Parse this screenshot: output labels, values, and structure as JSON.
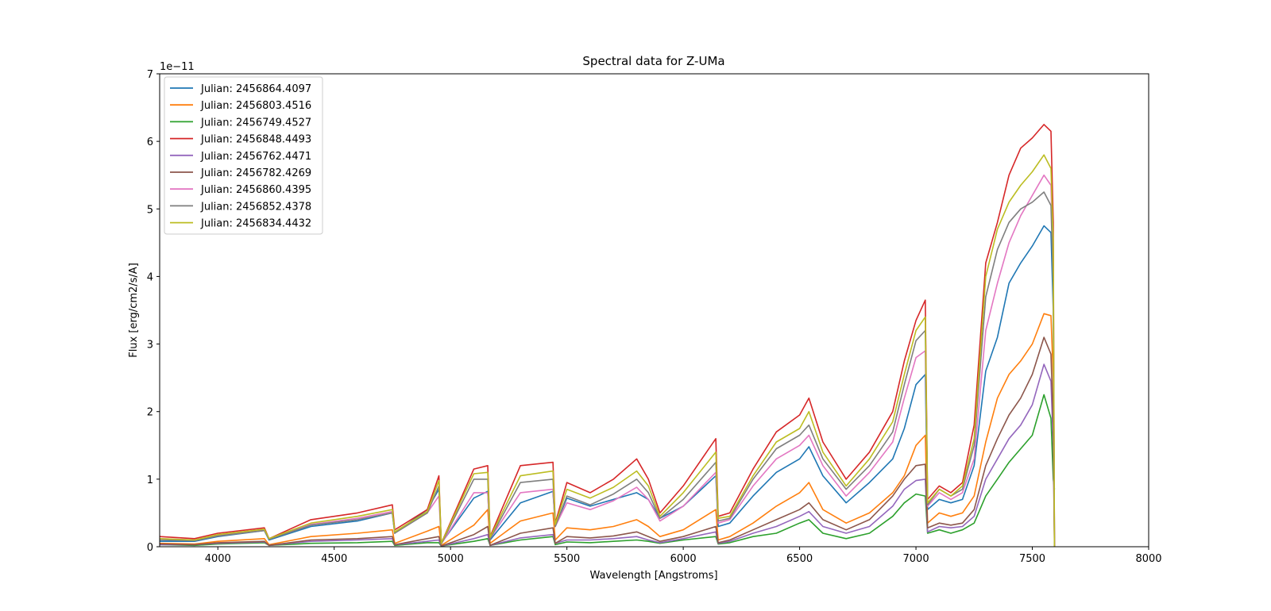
{
  "chart_data": {
    "type": "line",
    "title": "Spectral data for Z-UMa",
    "xlabel": "Wavelength [Angstroms]",
    "ylabel": "Flux [erg/cm2/s/A]",
    "offset_text": "1e−11",
    "xlim": [
      3750,
      8000
    ],
    "ylim": [
      0,
      7
    ],
    "x_ticks": [
      4000,
      4500,
      5000,
      5500,
      6000,
      6500,
      7000,
      7500,
      8000
    ],
    "x_tick_labels": [
      "4000",
      "4500",
      "5000",
      "5500",
      "6000",
      "6500",
      "7000",
      "7500",
      "8000"
    ],
    "y_ticks": [
      0,
      1,
      2,
      3,
      4,
      5,
      6,
      7
    ],
    "y_tick_labels": [
      "0",
      "1",
      "2",
      "3",
      "4",
      "5",
      "6",
      "7"
    ],
    "grid": false,
    "legend_position": "upper-left",
    "x": [
      3750,
      3900,
      4000,
      4200,
      4220,
      4400,
      4600,
      4750,
      4760,
      4900,
      4950,
      4960,
      5100,
      5160,
      5170,
      5300,
      5440,
      5450,
      5500,
      5600,
      5700,
      5800,
      5850,
      5900,
      6000,
      6140,
      6150,
      6200,
      6300,
      6400,
      6500,
      6540,
      6600,
      6700,
      6800,
      6900,
      6950,
      7000,
      7040,
      7050,
      7100,
      7150,
      7200,
      7250,
      7300,
      7350,
      7400,
      7450,
      7500,
      7550,
      7580,
      7590,
      7595
    ],
    "series": [
      {
        "name": "Julian: 2456864.4097",
        "color": "#1f77b4",
        "values": [
          0.08,
          0.08,
          0.15,
          0.24,
          0.1,
          0.3,
          0.38,
          0.5,
          0.2,
          0.55,
          0.85,
          0.05,
          0.72,
          0.82,
          0.1,
          0.65,
          0.82,
          0.3,
          0.72,
          0.6,
          0.7,
          0.8,
          0.7,
          0.42,
          0.6,
          1.05,
          0.3,
          0.35,
          0.75,
          1.1,
          1.3,
          1.48,
          1.05,
          0.65,
          0.95,
          1.3,
          1.75,
          2.4,
          2.55,
          0.55,
          0.7,
          0.65,
          0.7,
          1.2,
          2.6,
          3.1,
          3.9,
          4.2,
          4.45,
          4.75,
          4.65,
          3.5,
          0
        ]
      },
      {
        "name": "Julian: 2456803.4516",
        "color": "#ff7f0e",
        "values": [
          0.05,
          0.04,
          0.08,
          0.12,
          0.03,
          0.15,
          0.2,
          0.25,
          0.05,
          0.23,
          0.3,
          0.02,
          0.32,
          0.55,
          0.05,
          0.38,
          0.5,
          0.1,
          0.28,
          0.25,
          0.3,
          0.4,
          0.3,
          0.15,
          0.25,
          0.55,
          0.1,
          0.15,
          0.35,
          0.6,
          0.8,
          0.95,
          0.55,
          0.35,
          0.5,
          0.8,
          1.05,
          1.5,
          1.65,
          0.35,
          0.5,
          0.45,
          0.5,
          0.75,
          1.55,
          2.2,
          2.55,
          2.75,
          3.0,
          3.45,
          3.42,
          2.5,
          0
        ]
      },
      {
        "name": "Julian: 2456749.4527",
        "color": "#2ca02c",
        "values": [
          0.03,
          0.02,
          0.04,
          0.06,
          0.02,
          0.05,
          0.06,
          0.08,
          0.02,
          0.06,
          0.06,
          0.01,
          0.08,
          0.12,
          0.02,
          0.1,
          0.15,
          0.03,
          0.07,
          0.06,
          0.08,
          0.1,
          0.08,
          0.05,
          0.1,
          0.15,
          0.04,
          0.06,
          0.15,
          0.2,
          0.35,
          0.4,
          0.2,
          0.12,
          0.2,
          0.45,
          0.65,
          0.78,
          0.75,
          0.2,
          0.25,
          0.2,
          0.25,
          0.35,
          0.75,
          1.0,
          1.25,
          1.45,
          1.65,
          2.25,
          1.9,
          1.0,
          0.85
        ]
      },
      {
        "name": "Julian: 2456848.4493",
        "color": "#d62728",
        "values": [
          0.15,
          0.12,
          0.2,
          0.28,
          0.12,
          0.4,
          0.5,
          0.62,
          0.25,
          0.55,
          1.05,
          0.05,
          1.15,
          1.2,
          0.15,
          1.2,
          1.25,
          0.35,
          0.95,
          0.8,
          1.0,
          1.3,
          1.0,
          0.5,
          0.9,
          1.6,
          0.45,
          0.5,
          1.15,
          1.7,
          1.95,
          2.2,
          1.55,
          1.0,
          1.4,
          2.0,
          2.75,
          3.35,
          3.65,
          0.7,
          0.9,
          0.8,
          0.95,
          1.8,
          4.2,
          4.8,
          5.5,
          5.9,
          6.05,
          6.25,
          6.15,
          4.8,
          0
        ]
      },
      {
        "name": "Julian: 2456762.4471",
        "color": "#9467bd",
        "values": [
          0.03,
          0.03,
          0.05,
          0.07,
          0.02,
          0.08,
          0.1,
          0.12,
          0.03,
          0.08,
          0.1,
          0.01,
          0.12,
          0.18,
          0.02,
          0.13,
          0.18,
          0.05,
          0.1,
          0.1,
          0.12,
          0.15,
          0.1,
          0.06,
          0.12,
          0.22,
          0.05,
          0.08,
          0.2,
          0.3,
          0.45,
          0.52,
          0.3,
          0.2,
          0.3,
          0.6,
          0.85,
          0.98,
          1.0,
          0.22,
          0.3,
          0.28,
          0.3,
          0.45,
          1.0,
          1.3,
          1.6,
          1.8,
          2.1,
          2.7,
          2.45,
          1.5,
          0
        ]
      },
      {
        "name": "Julian: 2456782.4269",
        "color": "#8c564b",
        "values": [
          0.04,
          0.03,
          0.06,
          0.08,
          0.02,
          0.1,
          0.12,
          0.15,
          0.03,
          0.12,
          0.15,
          0.01,
          0.18,
          0.3,
          0.02,
          0.2,
          0.28,
          0.05,
          0.15,
          0.13,
          0.16,
          0.22,
          0.15,
          0.08,
          0.15,
          0.3,
          0.06,
          0.1,
          0.25,
          0.4,
          0.55,
          0.65,
          0.4,
          0.25,
          0.4,
          0.75,
          1.0,
          1.2,
          1.22,
          0.28,
          0.35,
          0.32,
          0.35,
          0.55,
          1.2,
          1.6,
          1.95,
          2.2,
          2.55,
          3.1,
          2.85,
          1.8,
          0
        ]
      },
      {
        "name": "Julian: 2456860.4395",
        "color": "#e377c2",
        "values": [
          0.12,
          0.1,
          0.17,
          0.25,
          0.12,
          0.33,
          0.42,
          0.52,
          0.22,
          0.5,
          0.75,
          0.04,
          0.8,
          0.8,
          0.12,
          0.8,
          0.85,
          0.3,
          0.65,
          0.55,
          0.68,
          0.88,
          0.7,
          0.38,
          0.6,
          1.1,
          0.35,
          0.4,
          0.9,
          1.3,
          1.5,
          1.65,
          1.2,
          0.75,
          1.1,
          1.55,
          2.2,
          2.8,
          2.9,
          0.6,
          0.8,
          0.7,
          0.8,
          1.3,
          3.2,
          3.9,
          4.5,
          4.9,
          5.2,
          5.5,
          5.35,
          4.1,
          0
        ]
      },
      {
        "name": "Julian: 2456852.4378",
        "color": "#7f7f7f",
        "values": [
          0.1,
          0.09,
          0.16,
          0.24,
          0.11,
          0.32,
          0.4,
          0.5,
          0.2,
          0.5,
          0.9,
          0.04,
          1.0,
          1.0,
          0.12,
          0.95,
          1.0,
          0.3,
          0.75,
          0.62,
          0.78,
          1.0,
          0.8,
          0.42,
          0.7,
          1.25,
          0.38,
          0.42,
          1.0,
          1.45,
          1.65,
          1.8,
          1.3,
          0.85,
          1.2,
          1.7,
          2.4,
          3.05,
          3.2,
          0.62,
          0.85,
          0.75,
          0.85,
          1.5,
          3.7,
          4.4,
          4.8,
          5.0,
          5.1,
          5.25,
          5.05,
          3.9,
          0
        ]
      },
      {
        "name": "Julian: 2456834.4432",
        "color": "#bcbd22",
        "values": [
          0.12,
          0.1,
          0.18,
          0.26,
          0.12,
          0.35,
          0.45,
          0.55,
          0.22,
          0.52,
          0.98,
          0.05,
          1.08,
          1.1,
          0.14,
          1.05,
          1.12,
          0.33,
          0.85,
          0.72,
          0.88,
          1.12,
          0.9,
          0.45,
          0.8,
          1.4,
          0.42,
          0.45,
          1.05,
          1.55,
          1.75,
          2.0,
          1.4,
          0.9,
          1.3,
          1.85,
          2.55,
          3.2,
          3.4,
          0.65,
          0.85,
          0.75,
          0.9,
          1.6,
          4.0,
          4.7,
          5.1,
          5.35,
          5.55,
          5.8,
          5.6,
          4.5,
          0
        ]
      }
    ]
  }
}
